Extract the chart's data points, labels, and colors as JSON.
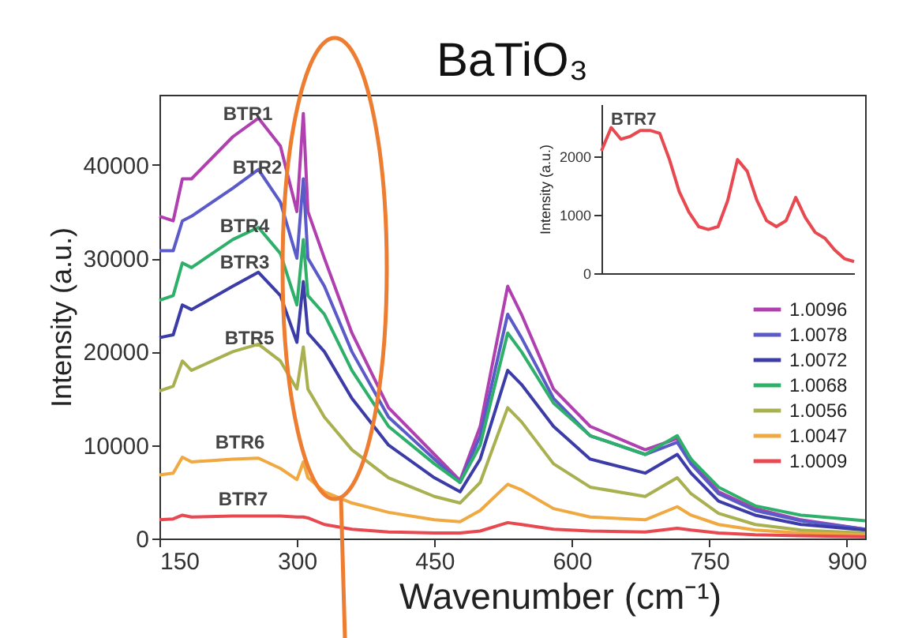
{
  "chart_data": [
    {
      "type": "line",
      "title": "BaTiO₃",
      "xlabel": "Wavenumber (cm⁻¹)",
      "ylabel": "Intensity (a.u.)",
      "xlim": [
        150,
        920
      ],
      "ylim": [
        0,
        47500
      ],
      "xticks": [
        150,
        300,
        450,
        600,
        750,
        900
      ],
      "yticks": [
        0,
        10000,
        20000,
        30000,
        40000
      ],
      "legend": "right",
      "x": [
        150,
        165,
        175,
        185,
        230,
        258,
        282,
        300,
        307,
        312,
        330,
        360,
        400,
        450,
        478,
        500,
        530,
        545,
        580,
        620,
        680,
        715,
        730,
        760,
        800,
        850,
        920
      ],
      "series": [
        {
          "name": "1.0096",
          "color": "#b040b0",
          "values": [
            34500,
            34000,
            38500,
            38500,
            43000,
            45000,
            42000,
            35000,
            45500,
            35000,
            30000,
            22000,
            14000,
            9000,
            6200,
            12000,
            27000,
            24000,
            16000,
            12000,
            9500,
            10700,
            8500,
            5000,
            3200,
            2000,
            1000
          ]
        },
        {
          "name": "1.0078",
          "color": "#5a5ac8",
          "values": [
            30800,
            30800,
            34000,
            34500,
            37500,
            39500,
            36000,
            30000,
            38500,
            30000,
            27000,
            20000,
            13000,
            8500,
            6000,
            11000,
            24000,
            21500,
            15000,
            11000,
            9000,
            10300,
            8000,
            4800,
            3000,
            1900,
            1000
          ]
        },
        {
          "name": "1.0072",
          "color": "#3c3ca8",
          "values": [
            21500,
            21800,
            25000,
            24500,
            27000,
            28500,
            26000,
            21000,
            27500,
            22000,
            20000,
            15000,
            10000,
            6500,
            5000,
            8500,
            18000,
            16500,
            12000,
            8500,
            7000,
            9000,
            7000,
            4000,
            2500,
            1500,
            900
          ]
        },
        {
          "name": "1.0068",
          "color": "#2eb06a",
          "values": [
            25500,
            26000,
            29500,
            29000,
            32000,
            33300,
            30500,
            25000,
            32000,
            26000,
            24000,
            18000,
            12000,
            8000,
            6000,
            10000,
            22000,
            20000,
            14500,
            11000,
            9000,
            11000,
            8500,
            5500,
            3500,
            2500,
            1900
          ]
        },
        {
          "name": "1.0056",
          "color": "#a8b050",
          "values": [
            15800,
            16300,
            19000,
            18000,
            20000,
            20800,
            19000,
            16000,
            20500,
            16000,
            13000,
            9500,
            6500,
            4500,
            3800,
            6000,
            14000,
            12500,
            8000,
            5500,
            4500,
            6500,
            4800,
            2700,
            1500,
            900,
            600
          ]
        },
        {
          "name": "1.0047",
          "color": "#f0a840",
          "values": [
            6800,
            7000,
            8700,
            8200,
            8500,
            8600,
            7500,
            6300,
            8200,
            6500,
            5000,
            3800,
            2800,
            2000,
            1800,
            3000,
            5800,
            5200,
            3200,
            2300,
            2000,
            3400,
            2500,
            1500,
            900,
            600,
            400
          ]
        },
        {
          "name": "1.0009",
          "color": "#e84850",
          "values": [
            2000,
            2100,
            2500,
            2300,
            2400,
            2400,
            2400,
            2300,
            2300,
            2200,
            1500,
            1000,
            700,
            600,
            600,
            800,
            1700,
            1500,
            1000,
            800,
            700,
            1100,
            900,
            600,
            400,
            300,
            200
          ]
        }
      ],
      "annotations": [
        "BTR1",
        "BTR2",
        "BTR4",
        "BTR3",
        "BTR5",
        "BTR6",
        "BTR7"
      ]
    },
    {
      "type": "line",
      "ylabel": "Intensity (a.u.)",
      "ylim": [
        0,
        2900
      ],
      "yticks": [
        0,
        1000,
        2000
      ],
      "categories": [
        null,
        null,
        null,
        null,
        null,
        null,
        null,
        null,
        null,
        null,
        null,
        null,
        null,
        null,
        null,
        null,
        null,
        null,
        null,
        null,
        null,
        null,
        null,
        null,
        null,
        null,
        null
      ],
      "series": [
        {
          "color": "#e84850",
          "values": [
            2100,
            2500,
            2300,
            2350,
            2450,
            2450,
            2400,
            1950,
            1400,
            1050,
            800,
            750,
            800,
            1250,
            1950,
            1750,
            1250,
            900,
            800,
            900,
            1300,
            950,
            700,
            600,
            400,
            250,
            200
          ]
        }
      ],
      "annotations": [
        "BTR7"
      ]
    }
  ]
}
